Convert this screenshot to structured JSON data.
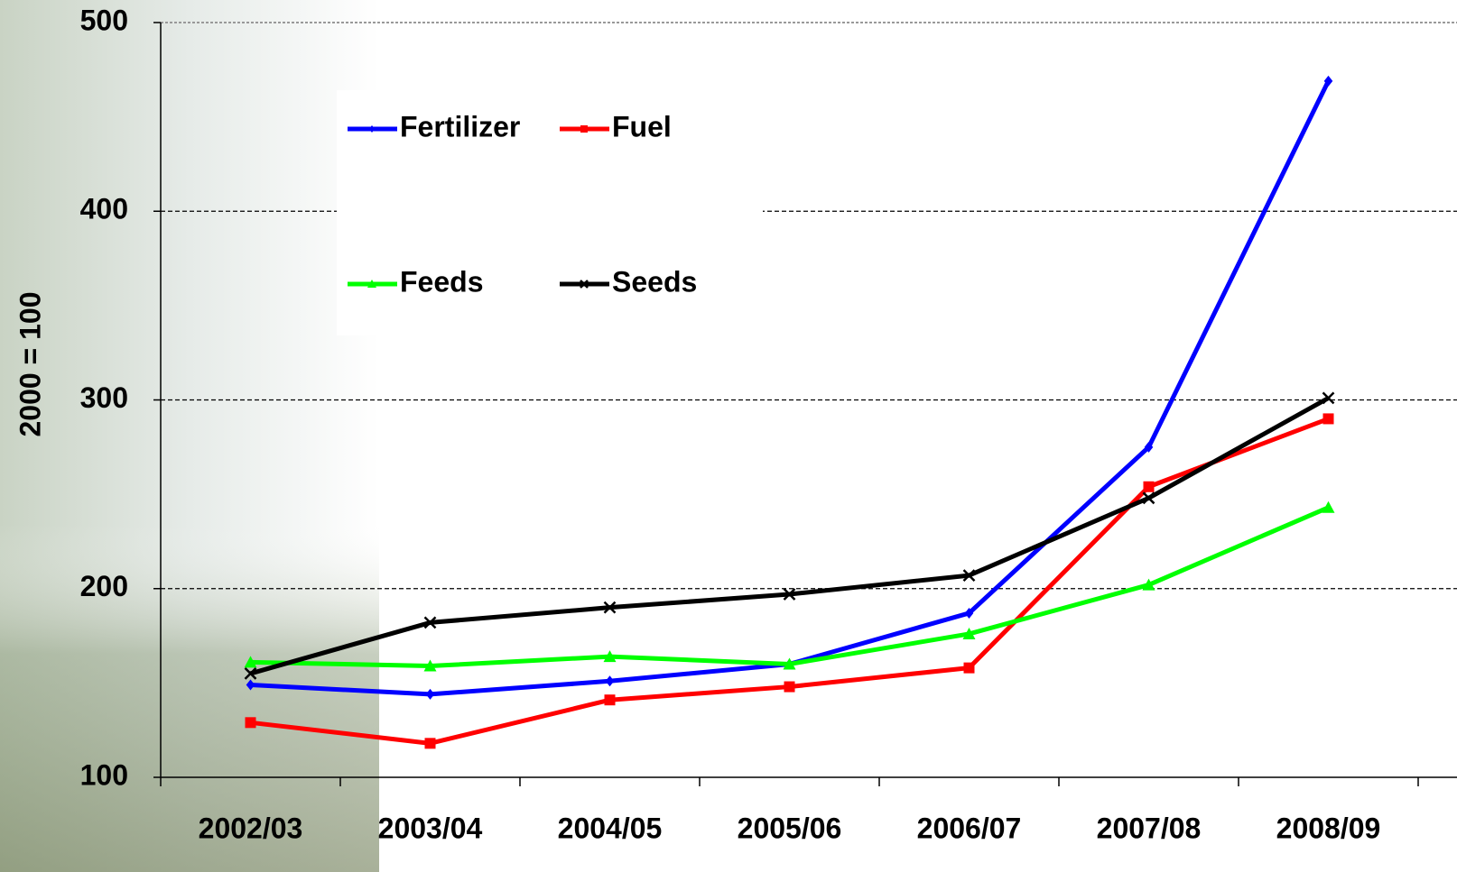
{
  "chart_data": {
    "type": "line",
    "y_label": "2000 = 100",
    "categories": [
      "2002/03",
      "2003/04",
      "2004/05",
      "2005/06",
      "2006/07",
      "2007/08",
      "2008/09"
    ],
    "series": [
      {
        "name": "Fertilizer",
        "color": "#0000ff",
        "marker": "diamond",
        "values": [
          149,
          144,
          151,
          160,
          187,
          275,
          469
        ]
      },
      {
        "name": "Fuel",
        "color": "#ff0000",
        "marker": "square",
        "values": [
          129,
          118,
          141,
          148,
          158,
          254,
          290
        ]
      },
      {
        "name": "Feeds",
        "color": "#00ff00",
        "marker": "triangle",
        "values": [
          161,
          159,
          164,
          160,
          176,
          202,
          243
        ]
      },
      {
        "name": "Seeds",
        "color": "#000000",
        "marker": "x",
        "values": [
          155,
          182,
          190,
          197,
          207,
          248,
          301
        ]
      }
    ],
    "ylim": [
      100,
      500
    ],
    "yticks": [
      100,
      200,
      300,
      400,
      500
    ],
    "grid": true
  }
}
